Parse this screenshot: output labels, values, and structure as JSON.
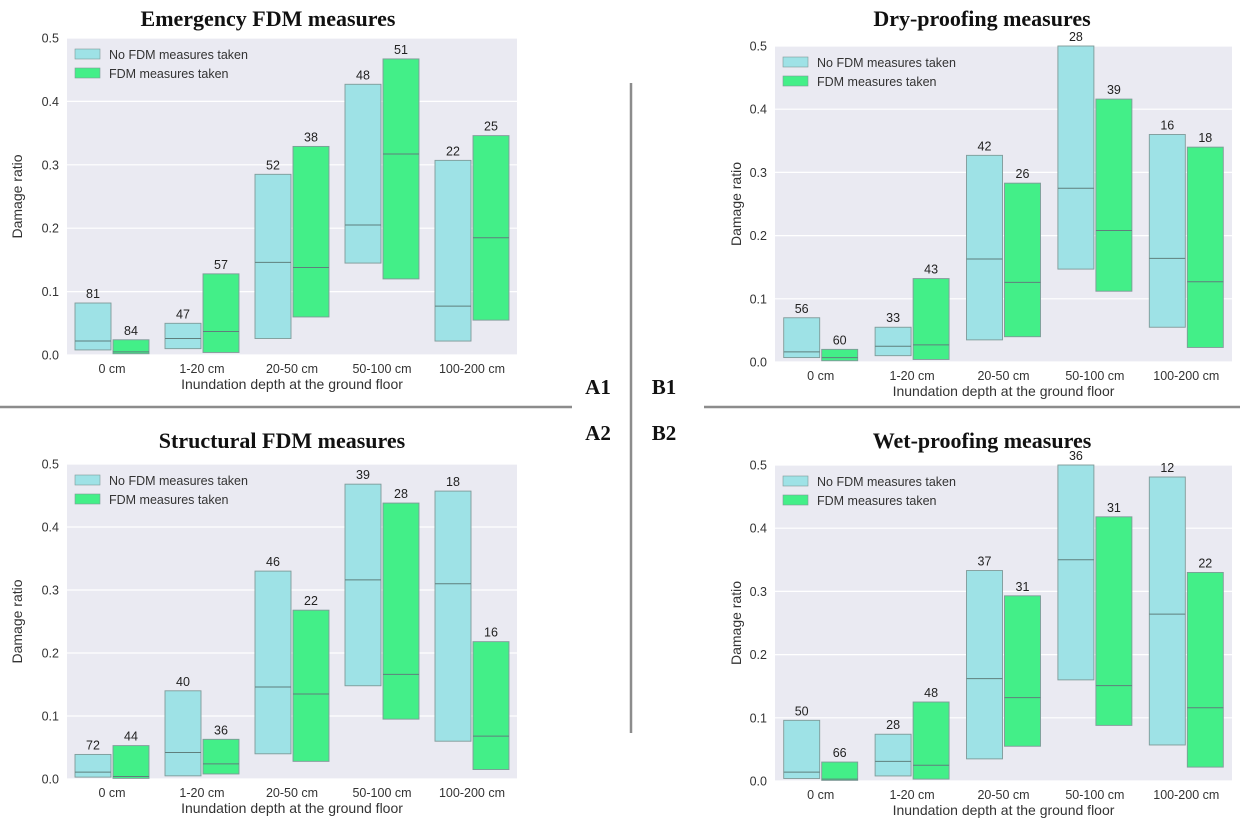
{
  "panel_labels": {
    "a1": "A1",
    "b1": "B1",
    "a2": "A2",
    "b2": "B2"
  },
  "colors": {
    "no_fdm": "#9ee2e6",
    "fdm": "#43ef88",
    "plot_bg": "#eaeaf2",
    "separator": "#8c8c8c"
  },
  "chart_data": [
    {
      "id": "a1",
      "type": "bar",
      "title": "Emergency FDM measures",
      "xlabel": "Inundation depth at the ground floor",
      "ylabel": "Damage ratio",
      "ylim": [
        0,
        0.5
      ],
      "yticks": [
        "0.0",
        "0.1",
        "0.2",
        "0.3",
        "0.4",
        "0.5"
      ],
      "grid": true,
      "legend": "top-left",
      "categories": [
        "0 cm",
        "1-20 cm",
        "20-50 cm",
        "50-100 cm",
        "100-200 cm"
      ],
      "series": [
        {
          "name": "No FDM measures taken",
          "low": [
            0.008,
            0.01,
            0.026,
            0.145,
            0.022
          ],
          "median": [
            0.022,
            0.026,
            0.146,
            0.205,
            0.077
          ],
          "high": [
            0.082,
            0.05,
            0.285,
            0.427,
            0.307
          ],
          "counts": [
            "81",
            "47",
            "52",
            "48",
            "22"
          ]
        },
        {
          "name": "FDM measures taken",
          "low": [
            0.002,
            0.004,
            0.06,
            0.12,
            0.055
          ],
          "median": [
            0.005,
            0.037,
            0.138,
            0.317,
            0.185
          ],
          "high": [
            0.024,
            0.128,
            0.329,
            0.467,
            0.346
          ],
          "counts": [
            "84",
            "57",
            "38",
            "51",
            "25"
          ]
        }
      ]
    },
    {
      "id": "b1",
      "type": "bar",
      "title": "Dry-proofing measures",
      "xlabel": "Inundation depth at the ground floor",
      "ylabel": "Damage ratio",
      "ylim": [
        0,
        0.5
      ],
      "yticks": [
        "0.0",
        "0.1",
        "0.2",
        "0.3",
        "0.4",
        "0.5"
      ],
      "grid": true,
      "legend": "top-left",
      "categories": [
        "0 cm",
        "1-20 cm",
        "20-50 cm",
        "50-100 cm",
        "100-200 cm"
      ],
      "series": [
        {
          "name": "No FDM measures taken",
          "low": [
            0.007,
            0.01,
            0.035,
            0.147,
            0.055
          ],
          "median": [
            0.016,
            0.025,
            0.163,
            0.275,
            0.164
          ],
          "high": [
            0.07,
            0.055,
            0.327,
            0.5,
            0.36
          ],
          "counts": [
            "56",
            "33",
            "42",
            "28",
            "16"
          ]
        },
        {
          "name": "FDM measures taken",
          "low": [
            0.002,
            0.004,
            0.04,
            0.112,
            0.023
          ],
          "median": [
            0.007,
            0.027,
            0.126,
            0.208,
            0.127
          ],
          "high": [
            0.02,
            0.132,
            0.283,
            0.416,
            0.34
          ],
          "counts": [
            "60",
            "43",
            "26",
            "39",
            "18"
          ]
        }
      ]
    },
    {
      "id": "a2",
      "type": "bar",
      "title": "Structural FDM measures",
      "xlabel": "Inundation depth at the ground floor",
      "ylabel": "Damage ratio",
      "ylim": [
        0,
        0.5
      ],
      "yticks": [
        "0.0",
        "0.1",
        "0.2",
        "0.3",
        "0.4",
        "0.5"
      ],
      "grid": true,
      "legend": "top-left",
      "categories": [
        "0 cm",
        "1-20 cm",
        "20-50 cm",
        "50-100 cm",
        "100-200 cm"
      ],
      "series": [
        {
          "name": "No FDM measures taken",
          "low": [
            0.003,
            0.005,
            0.04,
            0.148,
            0.06
          ],
          "median": [
            0.011,
            0.042,
            0.146,
            0.316,
            0.31
          ],
          "high": [
            0.039,
            0.14,
            0.33,
            0.468,
            0.457
          ],
          "counts": [
            "72",
            "40",
            "46",
            "39",
            "18"
          ]
        },
        {
          "name": "FDM measures taken",
          "low": [
            0.001,
            0.008,
            0.028,
            0.095,
            0.015
          ],
          "median": [
            0.004,
            0.024,
            0.135,
            0.166,
            0.068
          ],
          "high": [
            0.053,
            0.063,
            0.268,
            0.438,
            0.218
          ],
          "counts": [
            "44",
            "36",
            "22",
            "28",
            "16"
          ]
        }
      ]
    },
    {
      "id": "b2",
      "type": "bar",
      "title": "Wet-proofing measures",
      "xlabel": "Inundation depth at the ground floor",
      "ylabel": "Damage ratio",
      "ylim": [
        0,
        0.5
      ],
      "yticks": [
        "0.0",
        "0.1",
        "0.2",
        "0.3",
        "0.4",
        "0.5"
      ],
      "grid": true,
      "legend": "top-left",
      "categories": [
        "0 cm",
        "1-20 cm",
        "20-50 cm",
        "50-100 cm",
        "100-200 cm"
      ],
      "series": [
        {
          "name": "No FDM measures taken",
          "low": [
            0.004,
            0.008,
            0.035,
            0.16,
            0.057
          ],
          "median": [
            0.014,
            0.031,
            0.162,
            0.35,
            0.264
          ],
          "high": [
            0.096,
            0.074,
            0.333,
            0.5,
            0.481
          ],
          "counts": [
            "50",
            "28",
            "37",
            "36",
            "12"
          ]
        },
        {
          "name": "FDM measures taken",
          "low": [
            0.001,
            0.003,
            0.055,
            0.088,
            0.022
          ],
          "median": [
            0.003,
            0.025,
            0.132,
            0.151,
            0.116
          ],
          "high": [
            0.03,
            0.125,
            0.293,
            0.418,
            0.33
          ],
          "counts": [
            "66",
            "48",
            "31",
            "31",
            "22"
          ]
        }
      ]
    }
  ]
}
